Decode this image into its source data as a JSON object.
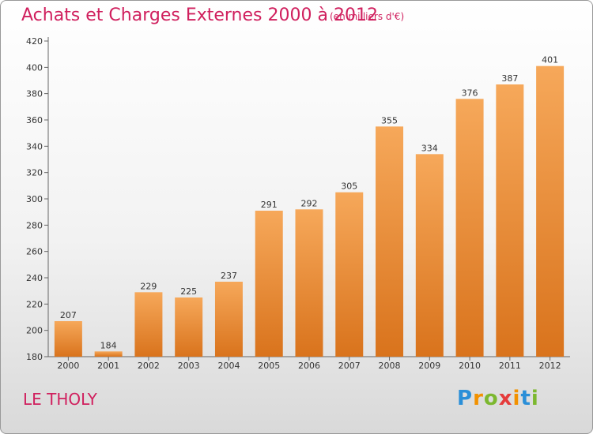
{
  "header": {
    "title": "Achats et Charges Externes 2000 à 2012",
    "subtitle": "(en milliers d'€)"
  },
  "footer": {
    "location": "LE THOLY",
    "logo_text": "Proxiti"
  },
  "colors": {
    "bar_light": "#f6a85a",
    "bar_dark": "#d9731c",
    "title": "#d0205e"
  },
  "chart_data": {
    "type": "bar",
    "title": "Achats et Charges Externes 2000 à 2012",
    "subtitle": "(en milliers d'€)",
    "categories": [
      "2000",
      "2001",
      "2002",
      "2003",
      "2004",
      "2005",
      "2006",
      "2007",
      "2008",
      "2009",
      "2010",
      "2011",
      "2012"
    ],
    "values": [
      207,
      184,
      229,
      225,
      237,
      291,
      292,
      305,
      355,
      334,
      376,
      387,
      401
    ],
    "ylim": [
      180,
      420
    ],
    "yticks": [
      180,
      200,
      220,
      240,
      260,
      280,
      300,
      320,
      340,
      360,
      380,
      400,
      420
    ],
    "grid": false,
    "legend": "none"
  }
}
